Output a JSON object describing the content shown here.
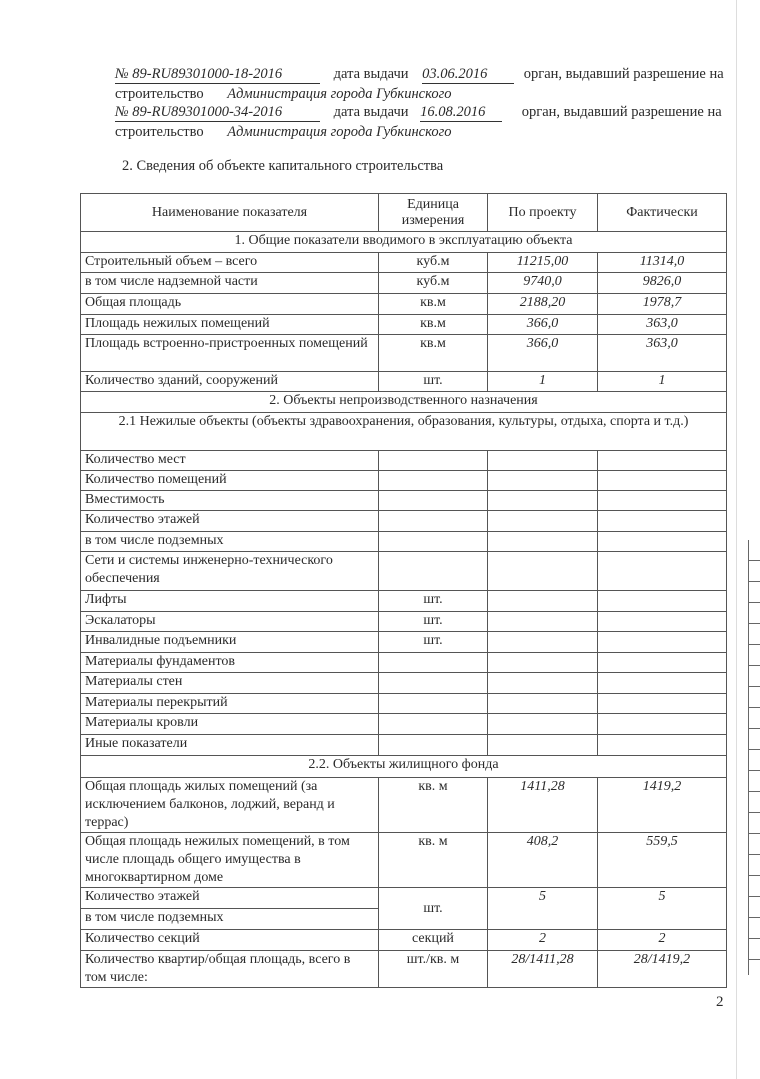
{
  "permits": [
    {
      "number": "№ 89-RU89301000-18-2016",
      "date_label": "дата выдачи",
      "date": "03.06.2016",
      "organ_label": "орган, выдавший  разрешение на",
      "construction_label": "строительство",
      "organ": "Администрация города Губкинского"
    },
    {
      "number": "№ 89-RU89301000-34-2016",
      "date_label": "дата выдачи",
      "date": "16.08.2016",
      "organ_label": "орган, выдавший  разрешение на",
      "construction_label": "строительство",
      "organ": "Администрация города Губкинского"
    }
  ],
  "section_title": "2. Сведения об объекте капитального строительства",
  "table": {
    "headers": [
      "Наименование показателя",
      "Единица измерения",
      "По проекту",
      "Фактически"
    ],
    "rows": [
      {
        "span": "1.  Общие показатели вводимого в эксплуатацию объекта"
      },
      {
        "name": "Строительный объем – всего",
        "unit": "куб.м",
        "project": "11215,00",
        "actual": "11314,0"
      },
      {
        "name": "в том числе надземной части",
        "unit": "куб.м",
        "project": "9740,0",
        "actual": "9826,0"
      },
      {
        "name": "Общая площадь",
        "unit": "кв.м",
        "project": "2188,20",
        "actual": "1978,7"
      },
      {
        "name": "Площадь нежилых помещений",
        "unit": "кв.м",
        "project": "366,0",
        "actual": "363,0"
      },
      {
        "name": "Площадь встроенно-пристроенных помещений",
        "unit": "кв.м",
        "project": "366,0",
        "actual": "363,0"
      },
      {
        "name": "Количество зданий, сооружений",
        "unit": "шт.",
        "project": "1",
        "actual": "1"
      },
      {
        "span": "2.  Объекты непроизводственного назначения"
      },
      {
        "span": "2.1 Нежилые объекты (объекты здравоохранения, образования, культуры, отдыха, спорта и т.д.)"
      },
      {
        "name": "Количество мест",
        "unit": "",
        "project": "",
        "actual": ""
      },
      {
        "name": "Количество помещений",
        "unit": "",
        "project": "",
        "actual": ""
      },
      {
        "name": "Вместимость",
        "unit": "",
        "project": "",
        "actual": ""
      },
      {
        "name": "Количество этажей",
        "unit": "",
        "project": "",
        "actual": ""
      },
      {
        "name": "в том числе подземных",
        "unit": "",
        "project": "",
        "actual": ""
      },
      {
        "name": "Сети и системы инженерно-технического обеспечения",
        "unit": "",
        "project": "",
        "actual": ""
      },
      {
        "name": "Лифты",
        "unit": "шт.",
        "project": "",
        "actual": ""
      },
      {
        "name": "Эскалаторы",
        "unit": "шт.",
        "project": "",
        "actual": ""
      },
      {
        "name": "Инвалидные подъемники",
        "unit": "шт.",
        "project": "",
        "actual": ""
      },
      {
        "name": "Материалы фундаментов",
        "unit": "",
        "project": "",
        "actual": ""
      },
      {
        "name": "Материалы стен",
        "unit": "",
        "project": "",
        "actual": ""
      },
      {
        "name": "Материалы перекрытий",
        "unit": "",
        "project": "",
        "actual": ""
      },
      {
        "name": "Материалы кровли",
        "unit": "",
        "project": "",
        "actual": ""
      },
      {
        "name": "Иные показатели",
        "unit": "",
        "project": "",
        "actual": ""
      },
      {
        "span": "2.2. Объекты жилищного фонда"
      },
      {
        "name": "Общая площадь жилых помещений (за исключением балконов, лоджий, веранд и террас)",
        "unit": "кв. м",
        "project": "1411,28",
        "actual": "1419,2"
      },
      {
        "name": "Общая площадь нежилых помещений, в том числе площадь общего имущества в многоквартирном доме",
        "unit": "кв. м",
        "project": "408,2",
        "actual": "559,5"
      },
      {
        "name": "Количество этажей",
        "unit": "шт.",
        "project": "5",
        "actual": "5",
        "merge_next": true
      },
      {
        "name": "в том числе подземных",
        "merged": true
      },
      {
        "name": "Количество секций",
        "unit": "секций",
        "project": "2",
        "actual": "2"
      },
      {
        "name": "Количество квартир/общая площадь, всего в том числе:",
        "unit": "шт./кв. м",
        "project": "28/1411,28",
        "actual": "28/1419,2"
      }
    ]
  },
  "page_number": "2"
}
